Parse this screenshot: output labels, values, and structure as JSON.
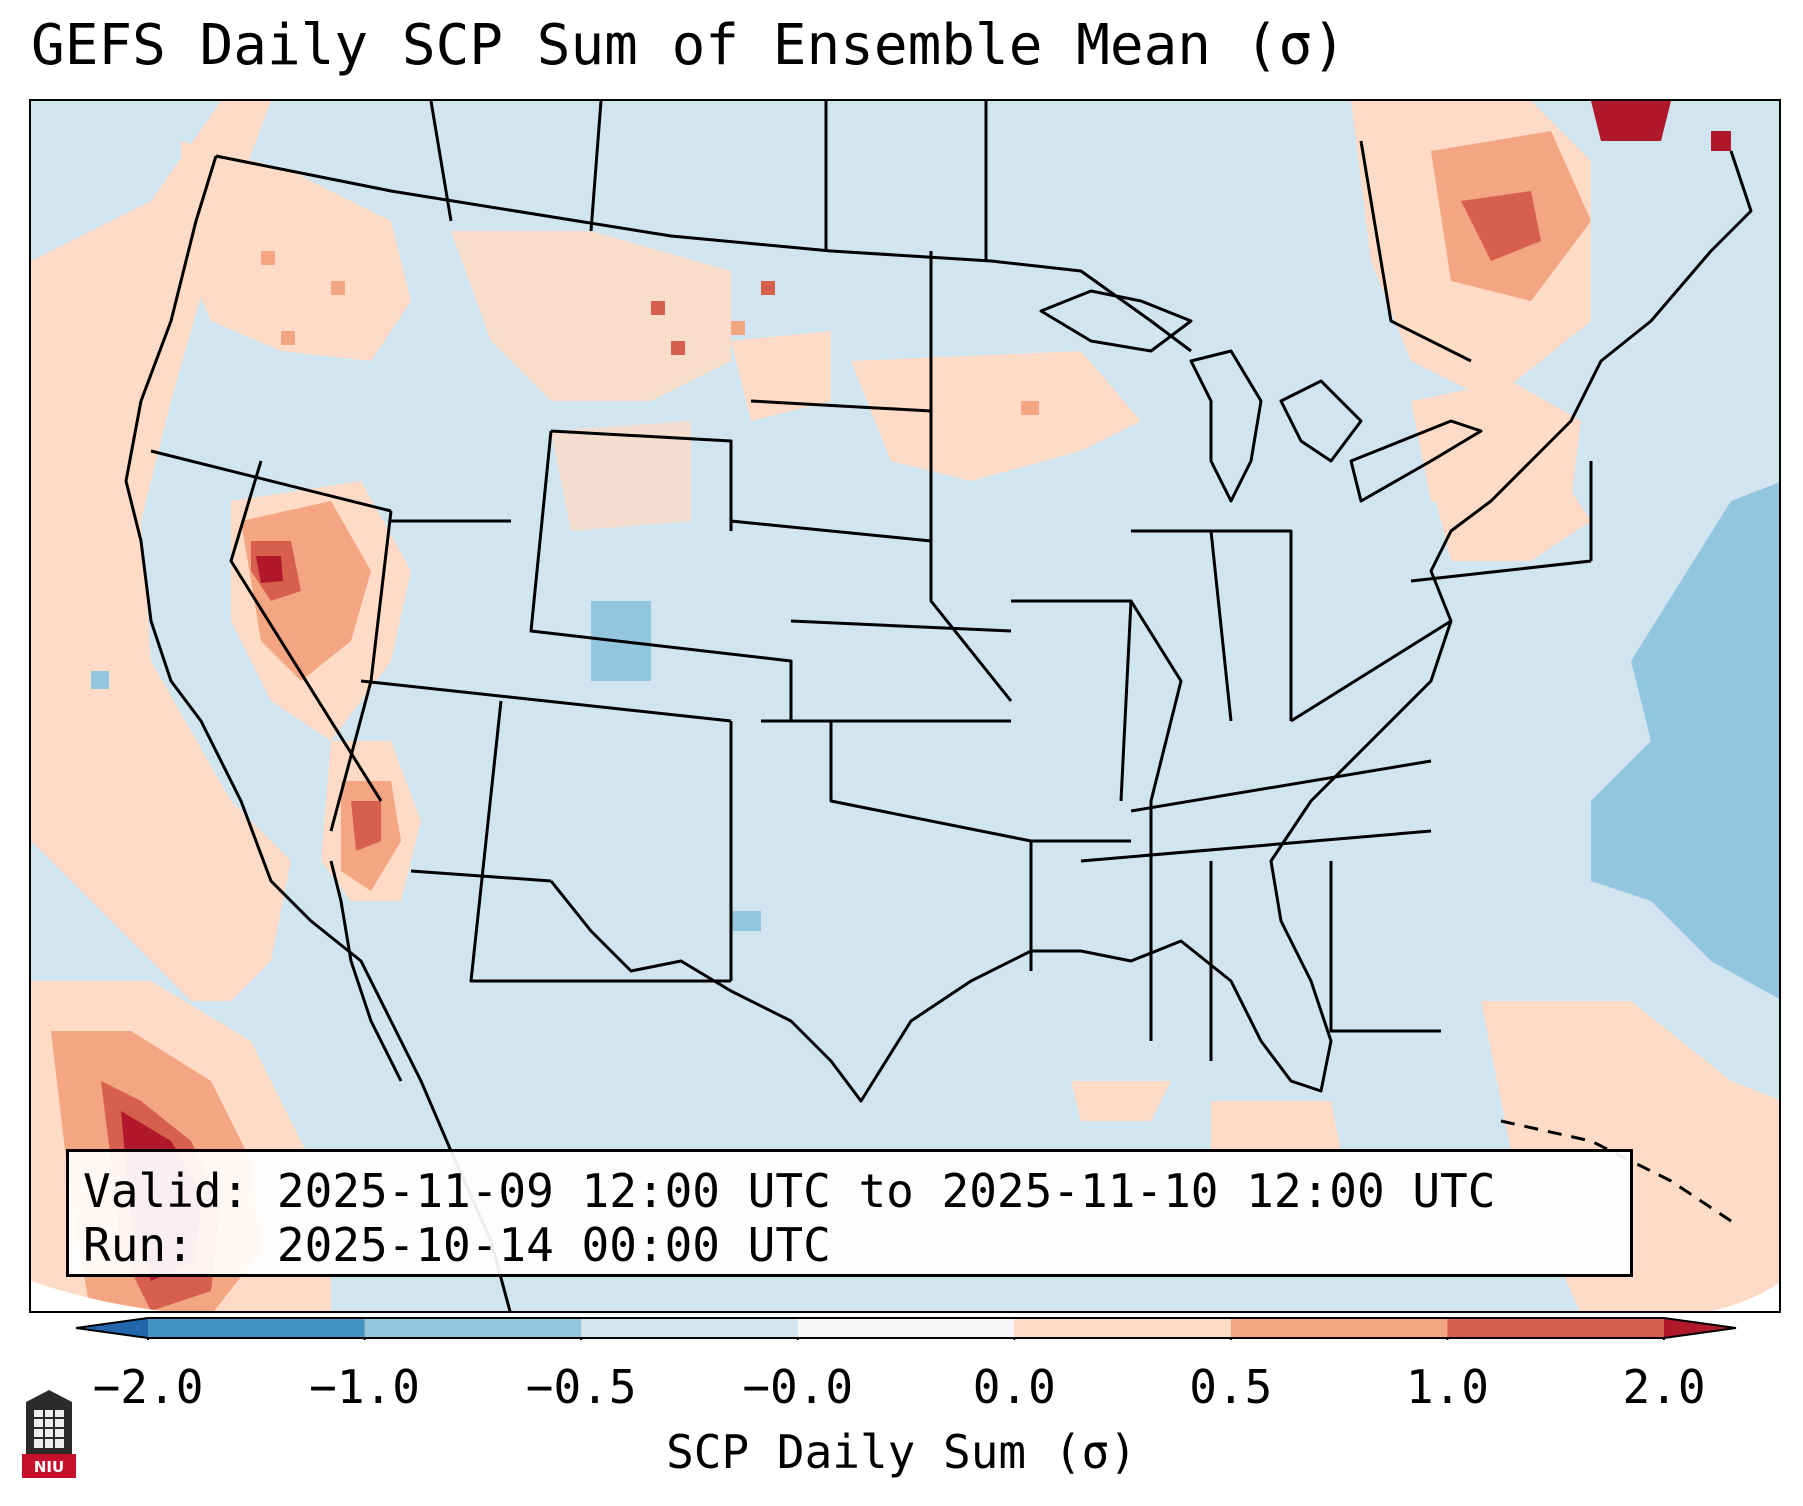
{
  "title": "GEFS Daily SCP Sum of Ensemble Mean (σ)",
  "info": {
    "valid_label": "Valid:",
    "valid_value": "2025-11-09 12:00 UTC to 2025-11-10 12:00 UTC",
    "run_label": "Run:",
    "run_value": "2025-10-14 00:00 UTC"
  },
  "colorbar": {
    "label": "SCP Daily Sum (σ)",
    "ticks": [
      "−2.0",
      "−1.0",
      "−0.5",
      "−0.0",
      "0.0",
      "0.5",
      "1.0",
      "2.0"
    ],
    "bins": [
      {
        "range": [
          -2.0,
          -1.0
        ],
        "color": "#4393c3"
      },
      {
        "range": [
          -1.0,
          -0.5
        ],
        "color": "#92c5de"
      },
      {
        "range": [
          -0.5,
          0.0
        ],
        "color": "#d1e5f0"
      },
      {
        "range": [
          0.0,
          0.0
        ],
        "color": "#f7f7f7"
      },
      {
        "range": [
          0.0,
          0.5
        ],
        "color": "#fddbc7"
      },
      {
        "range": [
          0.5,
          1.0
        ],
        "color": "#f4a582"
      },
      {
        "range": [
          1.0,
          2.0
        ],
        "color": "#d6604d"
      }
    ],
    "under_color": "#2166ac",
    "over_color": "#b2182b"
  },
  "map": {
    "background_color": "#d1e5f0",
    "outline_color": "#000000"
  },
  "logo": {
    "text": "NIU"
  }
}
